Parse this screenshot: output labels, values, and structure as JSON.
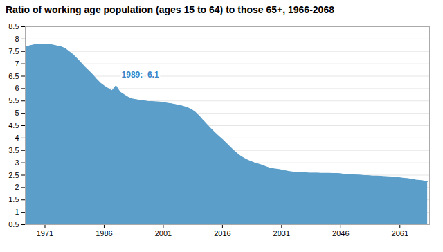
{
  "chart_data": {
    "type": "area",
    "title": "Ratio of working age population (ages 15 to 64) to those 65+, 1966-2068",
    "color": "#5b9ec9",
    "x": [
      1966,
      1967,
      1968,
      1969,
      1970,
      1971,
      1972,
      1973,
      1974,
      1975,
      1976,
      1977,
      1978,
      1979,
      1980,
      1981,
      1982,
      1983,
      1984,
      1985,
      1986,
      1987,
      1988,
      1989,
      1990,
      1991,
      1992,
      1993,
      1994,
      1995,
      1996,
      1997,
      1998,
      1999,
      2000,
      2001,
      2002,
      2003,
      2004,
      2005,
      2006,
      2007,
      2008,
      2009,
      2010,
      2011,
      2012,
      2013,
      2014,
      2015,
      2016,
      2017,
      2018,
      2019,
      2020,
      2021,
      2022,
      2023,
      2024,
      2025,
      2026,
      2027,
      2028,
      2029,
      2030,
      2031,
      2032,
      2033,
      2034,
      2035,
      2036,
      2037,
      2038,
      2039,
      2040,
      2041,
      2042,
      2043,
      2044,
      2045,
      2046,
      2047,
      2048,
      2049,
      2050,
      2051,
      2052,
      2053,
      2054,
      2055,
      2056,
      2057,
      2058,
      2059,
      2060,
      2061,
      2062,
      2063,
      2064,
      2065,
      2066,
      2067,
      2068
    ],
    "values": [
      7.7,
      7.72,
      7.75,
      7.78,
      7.78,
      7.78,
      7.78,
      7.75,
      7.72,
      7.68,
      7.62,
      7.5,
      7.38,
      7.22,
      7.05,
      6.88,
      6.72,
      6.56,
      6.38,
      6.22,
      6.1,
      6.0,
      5.9,
      6.1,
      5.85,
      5.75,
      5.65,
      5.58,
      5.55,
      5.52,
      5.5,
      5.48,
      5.47,
      5.46,
      5.45,
      5.43,
      5.4,
      5.38,
      5.35,
      5.32,
      5.28,
      5.23,
      5.16,
      5.05,
      4.9,
      4.72,
      4.55,
      4.38,
      4.22,
      4.07,
      3.93,
      3.78,
      3.62,
      3.47,
      3.33,
      3.22,
      3.13,
      3.06,
      3.0,
      2.95,
      2.9,
      2.84,
      2.78,
      2.75,
      2.73,
      2.7,
      2.67,
      2.64,
      2.62,
      2.61,
      2.6,
      2.59,
      2.58,
      2.58,
      2.58,
      2.57,
      2.57,
      2.57,
      2.56,
      2.56,
      2.55,
      2.53,
      2.52,
      2.51,
      2.5,
      2.49,
      2.48,
      2.47,
      2.46,
      2.46,
      2.45,
      2.44,
      2.43,
      2.42,
      2.4,
      2.39,
      2.37,
      2.35,
      2.33,
      2.3,
      2.28,
      2.26,
      2.25
    ],
    "xlim": [
      1966,
      2068.5
    ],
    "ylim": [
      0.5,
      8.5
    ],
    "xticks": [
      1971,
      1986,
      2001,
      2016,
      2031,
      2046,
      2061
    ],
    "yticks": [
      0.5,
      1,
      1.5,
      2,
      2.5,
      3,
      3.5,
      4,
      4.5,
      5,
      5.5,
      6,
      6.5,
      7,
      7.5,
      8,
      8.5
    ],
    "grid": true,
    "annotations": [
      {
        "text": "1989:  6.1",
        "x": 1989,
        "y": 6.1
      }
    ]
  }
}
